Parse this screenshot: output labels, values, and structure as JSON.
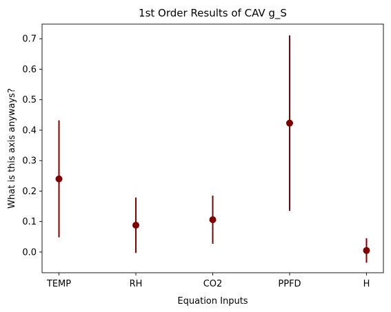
{
  "chart_data": {
    "type": "scatter",
    "title": "1st Order Results of CAV g_S",
    "xlabel": "Equation Inputs",
    "ylabel": "What is this axis anyways?",
    "categories": [
      "TEMP",
      "RH",
      "CO2",
      "PPFD",
      "H"
    ],
    "series": [
      {
        "values": [
          0.24,
          0.088,
          0.106,
          0.423,
          0.005
        ],
        "lower": [
          0.048,
          -0.003,
          0.027,
          0.135,
          -0.035
        ],
        "upper": [
          0.432,
          0.179,
          0.185,
          0.711,
          0.045
        ],
        "color": "#800000"
      }
    ],
    "ylim": [
      -0.068,
      0.748
    ],
    "yticks": [
      0.0,
      0.1,
      0.2,
      0.3,
      0.4,
      0.5,
      0.6,
      0.7
    ],
    "ytick_labels": [
      "0.0",
      "0.1",
      "0.2",
      "0.3",
      "0.4",
      "0.5",
      "0.6",
      "0.7"
    ],
    "grid": false,
    "legend": "none"
  }
}
